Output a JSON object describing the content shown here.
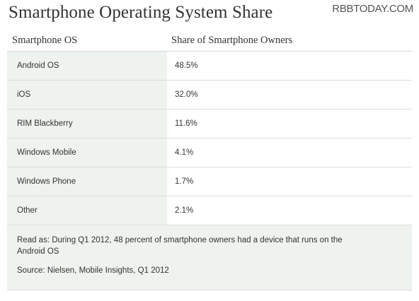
{
  "header": {
    "title": "Smartphone Operating System Share",
    "watermark": "RBBTODAY.COM"
  },
  "table": {
    "columns": [
      "Smartphone OS",
      "Share of Smartphone Owners"
    ],
    "rows": [
      {
        "os": "Android OS",
        "share": "48.5%"
      },
      {
        "os": "iOS",
        "share": "32.0%"
      },
      {
        "os": "RIM Blackberry",
        "share": "11.6%"
      },
      {
        "os": "Windows Mobile",
        "share": "4.1%"
      },
      {
        "os": "Windows Phone",
        "share": "1.7%"
      },
      {
        "os": "Other",
        "share": "2.1%"
      }
    ]
  },
  "footer": {
    "read_as_line1": "Read as: During Q1 2012, 48 percent  of smartphone owners had a device that runs on the",
    "read_as_line2": "Android OS",
    "source": "Source: Nielsen, Mobile Insights, Q1 2012"
  },
  "colors": {
    "label_column_bg": "#eef3ef",
    "row_divider": "#dcdcdc",
    "text": "#333333"
  },
  "chart_data": {
    "type": "table",
    "title": "Smartphone Operating System Share",
    "columns": [
      "Smartphone OS",
      "Share of Smartphone Owners"
    ],
    "categories": [
      "Android OS",
      "iOS",
      "RIM Blackberry",
      "Windows Mobile",
      "Windows Phone",
      "Other"
    ],
    "values": [
      48.5,
      32.0,
      11.6,
      4.1,
      1.7,
      2.1
    ],
    "unit": "%"
  }
}
